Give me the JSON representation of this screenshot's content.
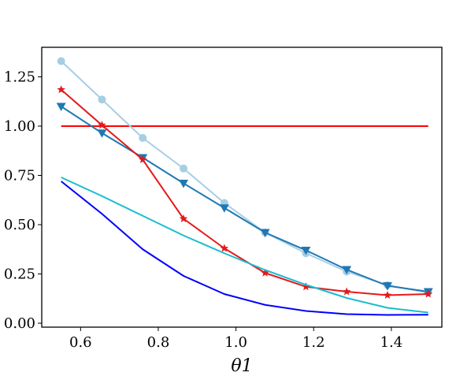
{
  "chart_data": {
    "type": "line",
    "title": "",
    "xlabel": "θ1",
    "ylabel": "",
    "xlim": [
      0.5,
      1.53
    ],
    "ylim": [
      -0.02,
      1.4
    ],
    "xticks": [
      0.6,
      0.8,
      1.0,
      1.2,
      1.4
    ],
    "xtick_labels": [
      "0.6",
      "0.8",
      "1.0",
      "1.2",
      "1.4"
    ],
    "yticks": [
      0.0,
      0.25,
      0.5,
      0.75,
      1.0,
      1.25
    ],
    "ytick_labels": [
      "0.00",
      "0.25",
      "0.50",
      "0.75",
      "1.00",
      "1.25"
    ],
    "grid": false,
    "x": [
      0.55,
      0.655,
      0.76,
      0.865,
      0.97,
      1.075,
      1.18,
      1.285,
      1.39,
      1.495
    ],
    "series": [
      {
        "color": "#ff0000",
        "marker": "none",
        "values": [
          1.0,
          1.0,
          1.0,
          1.0,
          1.0,
          1.0,
          1.0,
          1.0,
          1.0,
          1.0
        ]
      },
      {
        "color": "#a6cee3",
        "marker": "circle",
        "values": [
          1.33,
          1.135,
          0.94,
          0.785,
          0.61,
          0.46,
          0.355,
          0.262,
          0.193,
          0.155
        ]
      },
      {
        "color": "#1f78b4",
        "marker": "triangle-down",
        "values": [
          1.1,
          0.965,
          0.84,
          0.71,
          0.585,
          0.46,
          0.37,
          0.272,
          0.19,
          0.16
        ]
      },
      {
        "color": "#e31a1c",
        "marker": "star",
        "values": [
          1.185,
          1.005,
          0.83,
          0.53,
          0.38,
          0.255,
          0.185,
          0.16,
          0.142,
          0.148
        ]
      },
      {
        "color": "#17becf",
        "marker": "none",
        "values": [
          0.74,
          0.645,
          0.545,
          0.445,
          0.355,
          0.27,
          0.195,
          0.128,
          0.078,
          0.054
        ]
      },
      {
        "color": "#0000ff",
        "marker": "none",
        "values": [
          0.72,
          0.555,
          0.375,
          0.24,
          0.148,
          0.093,
          0.062,
          0.046,
          0.042,
          0.043
        ]
      }
    ]
  }
}
